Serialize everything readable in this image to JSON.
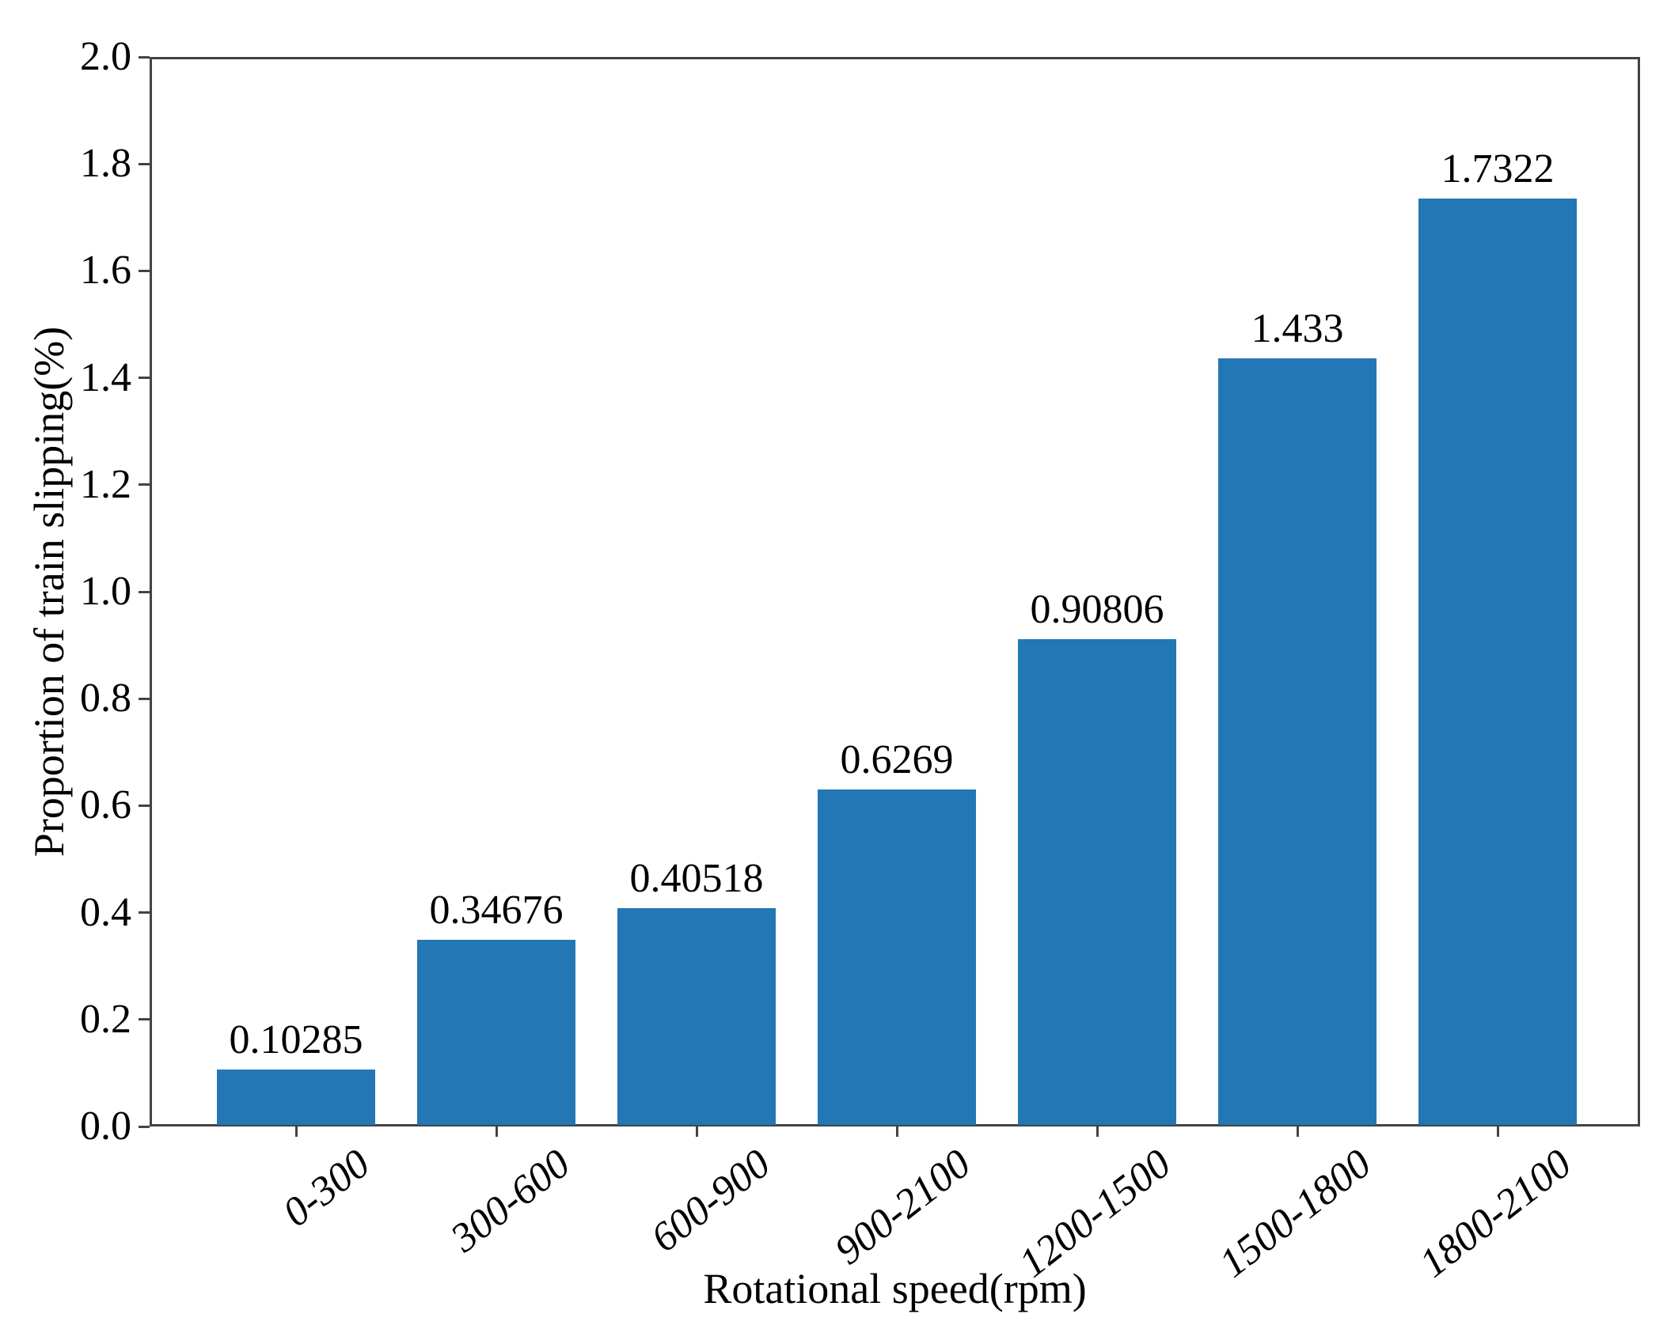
{
  "chart_data": {
    "type": "bar",
    "title": "",
    "xlabel": "Rotational speed(rpm)",
    "ylabel": "Proportion of train slipping(%)",
    "categories": [
      "0-300",
      "300-600",
      "600-900",
      "900-2100",
      "1200-1500",
      "1500-1800",
      "1800-2100"
    ],
    "values": [
      0.10285,
      0.34676,
      0.40518,
      0.6269,
      0.90806,
      1.433,
      1.7322
    ],
    "bar_labels": [
      "0.10285",
      "0.34676",
      "0.40518",
      "0.6269",
      "0.90806",
      "1.433",
      "1.7322"
    ],
    "ylim": [
      0.0,
      2.0
    ],
    "ytick_step": 0.2,
    "yticks": [
      "0.0",
      "0.2",
      "0.4",
      "0.6",
      "0.8",
      "1.0",
      "1.2",
      "1.4",
      "1.6",
      "1.8",
      "2.0"
    ],
    "grid": false,
    "legend": null,
    "bar_color": "#2277b4",
    "axis_color": "#434343",
    "text_color": "#000000"
  }
}
